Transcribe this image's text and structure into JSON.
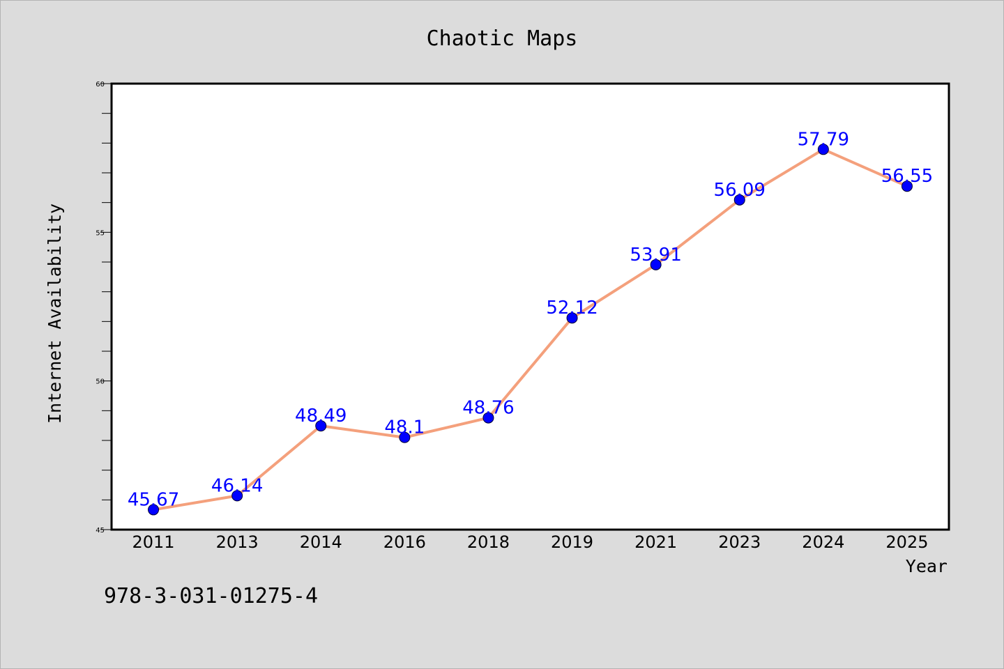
{
  "chart_data": {
    "type": "line",
    "title": "Chaotic Maps",
    "xlabel": "Year",
    "ylabel": "Internet Availability",
    "categories": [
      "2011",
      "2013",
      "2014",
      "2016",
      "2018",
      "2019",
      "2021",
      "2023",
      "2024",
      "2025"
    ],
    "series": [
      {
        "values": [
          45.67,
          46.14,
          48.49,
          48.1,
          48.76,
          52.12,
          53.91,
          56.09,
          57.79,
          56.55
        ],
        "labels": [
          "45.67",
          "46.14",
          "48.49",
          "48.1",
          "48.76",
          "52.12",
          "53.91",
          "56.09",
          "57.79",
          "56.55"
        ],
        "line_color": "#f4a07c",
        "marker_color": "#0000ff",
        "label_color": "#0000ff"
      }
    ],
    "ylim": [
      45,
      60
    ],
    "yticks": [
      45,
      50,
      55,
      60
    ],
    "grid": false,
    "legend": "none"
  },
  "footer_text": "978-3-031-01275-4",
  "colors": {
    "background": "#dcdcdc",
    "plot_background": "#ffffff",
    "axes": "#000000"
  }
}
